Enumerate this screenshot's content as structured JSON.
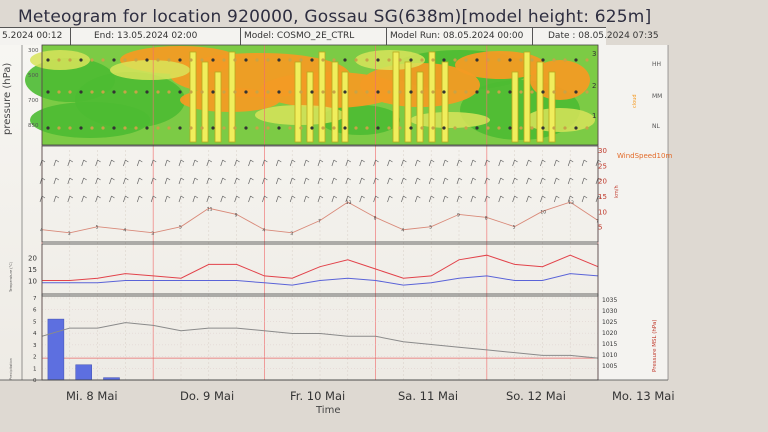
{
  "title": "Meteogram for location 920000, Gossau SG(638m)[model height: 625m]",
  "header": {
    "start": "5.2024 00:12",
    "end": "End: 13.05.2024 02:00",
    "model": "Model: COSMO_2E_CTRL",
    "run": "Model Run: 08.05.2024 00:00",
    "date": "Date : 08.05.2024 07:35"
  },
  "days": [
    "Mi. 8 Mai",
    "Do. 9 Mai",
    "Fr. 10 Mai",
    "Sa. 11 Mai",
    "So. 12 Mai",
    "Mo. 13 Mai"
  ],
  "x_title": "Time",
  "colors": {
    "orange": "#f39b24",
    "green": "#4dbb32",
    "yellow": "#f0ee5c",
    "red_line": "#e2424a",
    "blue_line": "#5a63d8",
    "bar_blue": "#5d6fe0",
    "pressure_line": "#8a8a8a"
  },
  "chart_data": [
    {
      "type": "heatmap",
      "ylabel": "pressure (hPa)",
      "y_ticks": [
        "300",
        "500",
        "700",
        "850"
      ],
      "right_ticks": [
        "3",
        "2",
        "1"
      ],
      "right_labels": [
        "HH",
        "MM",
        "NL"
      ],
      "right_axis_label": "cloud",
      "description_pattern": "orange high moisture band / green dry layers / yellow precipitation columns"
    },
    {
      "type": "line",
      "series_label": "WindSpeed10m",
      "right_axis_label": "km/h",
      "y_ticks": [
        "30",
        "25",
        "20",
        "15",
        "10",
        "5"
      ],
      "ylim": [
        0,
        30
      ],
      "x_hours": [
        0,
        6,
        12,
        18,
        24,
        30,
        36,
        42,
        48,
        54,
        60,
        66,
        72,
        78,
        84,
        90,
        96,
        102,
        108,
        114,
        120
      ],
      "values": [
        4,
        3,
        5,
        4,
        3,
        5,
        11,
        9,
        4,
        3,
        7,
        13,
        8,
        4,
        5,
        9,
        8,
        5,
        10,
        13,
        7
      ]
    },
    {
      "type": "line",
      "ylabel": "Temperature (°C)",
      "y_ticks": [
        "20",
        "15",
        "10"
      ],
      "ylim": [
        5,
        25
      ],
      "x_hours": [
        0,
        6,
        12,
        18,
        24,
        30,
        36,
        42,
        48,
        54,
        60,
        66,
        72,
        78,
        84,
        90,
        96,
        102,
        108,
        114,
        120
      ],
      "series": [
        {
          "values": [
            10,
            10,
            11,
            13,
            12,
            11,
            17,
            17,
            12,
            11,
            16,
            19,
            15,
            11,
            12,
            19,
            21,
            17,
            16,
            21,
            16
          ]
        },
        {
          "values": [
            9,
            9,
            9,
            10,
            10,
            10,
            10,
            10,
            9,
            8,
            10,
            11,
            10,
            8,
            9,
            11,
            12,
            10,
            10,
            13,
            12
          ]
        }
      ]
    },
    {
      "type": "bar",
      "ylabel": "Precipitation",
      "right_axis_label": "Pressure MSL (hPa)",
      "y_ticks": [
        "7",
        "6",
        "5",
        "4",
        "3",
        "2",
        "1",
        "0"
      ],
      "ylim": [
        0,
        7
      ],
      "right_ticks": [
        "1035",
        "1030",
        "1025",
        "1020",
        "1015",
        "1010",
        "1005"
      ],
      "bars_x_hours": [
        3,
        9,
        15
      ],
      "bars_values": [
        5.2,
        1.3,
        0.2
      ],
      "pressure_ylim": [
        1005,
        1035
      ],
      "pressure_x_hours": [
        0,
        6,
        12,
        18,
        24,
        30,
        36,
        42,
        48,
        54,
        60,
        66,
        72,
        78,
        84,
        90,
        96,
        102,
        108,
        114,
        120
      ],
      "pressure_values": [
        1021,
        1024,
        1024,
        1026,
        1025,
        1023,
        1024,
        1024,
        1023,
        1022,
        1022,
        1021,
        1021,
        1019,
        1018,
        1017,
        1016,
        1015,
        1014,
        1014,
        1013
      ]
    }
  ]
}
